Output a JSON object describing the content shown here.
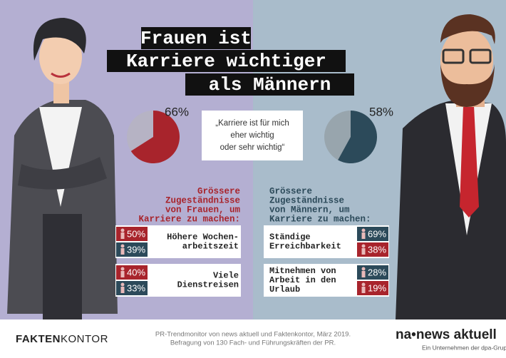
{
  "title": [
    "Frauen ist",
    "Karriere wichtiger",
    "als Männern"
  ],
  "pies": [
    {
      "value": 66,
      "label": "66%",
      "color": "#a8242c",
      "rest_color": "#b6b3c4"
    },
    {
      "value": 58,
      "label": "58%",
      "color": "#2c4a5a",
      "rest_color": "#98a5ad"
    }
  ],
  "quote": [
    "„Karriere ist für mich",
    "eher wichtig",
    "oder sehr wichtig“"
  ],
  "women": {
    "heading": [
      "Grössere",
      "Zugeständnisse",
      "von Frauen, um",
      "Karriere zu machen:"
    ],
    "items": [
      {
        "text": [
          "Höhere Wochen-",
          "arbeitszeit"
        ],
        "shares": [
          {
            "group": "women",
            "label": "50%"
          },
          {
            "group": "men",
            "label": "39%"
          }
        ]
      },
      {
        "text": [
          "Viele",
          "Dienstreisen"
        ],
        "shares": [
          {
            "group": "women",
            "label": "40%"
          },
          {
            "group": "men",
            "label": "33%"
          }
        ]
      }
    ]
  },
  "men": {
    "heading": [
      "Grössere",
      "Zugeständnisse",
      "von Männern, um",
      "Karriere zu machen:"
    ],
    "items": [
      {
        "text": [
          "Ständige",
          "Erreichbarkeit"
        ],
        "shares": [
          {
            "group": "men",
            "label": "69%"
          },
          {
            "group": "women",
            "label": "38%"
          }
        ]
      },
      {
        "text": [
          "Mitnehmen von",
          "Arbeit in den",
          "Urlaub"
        ],
        "shares": [
          {
            "group": "men",
            "label": "28%"
          },
          {
            "group": "women",
            "label": "19%"
          }
        ]
      }
    ]
  },
  "footer": {
    "brand_left": [
      "FAKTEN",
      "KONTOR"
    ],
    "source": [
      "PR-Trendmonitor von news aktuell und Faktenkontor, März 2019.",
      "Befragung von 130 Fach- und Führungskräften der PR."
    ],
    "brand_right": "na•news aktuell",
    "brand_right_sub": "Ein Unternehmen der dpa-Gruppe"
  }
}
